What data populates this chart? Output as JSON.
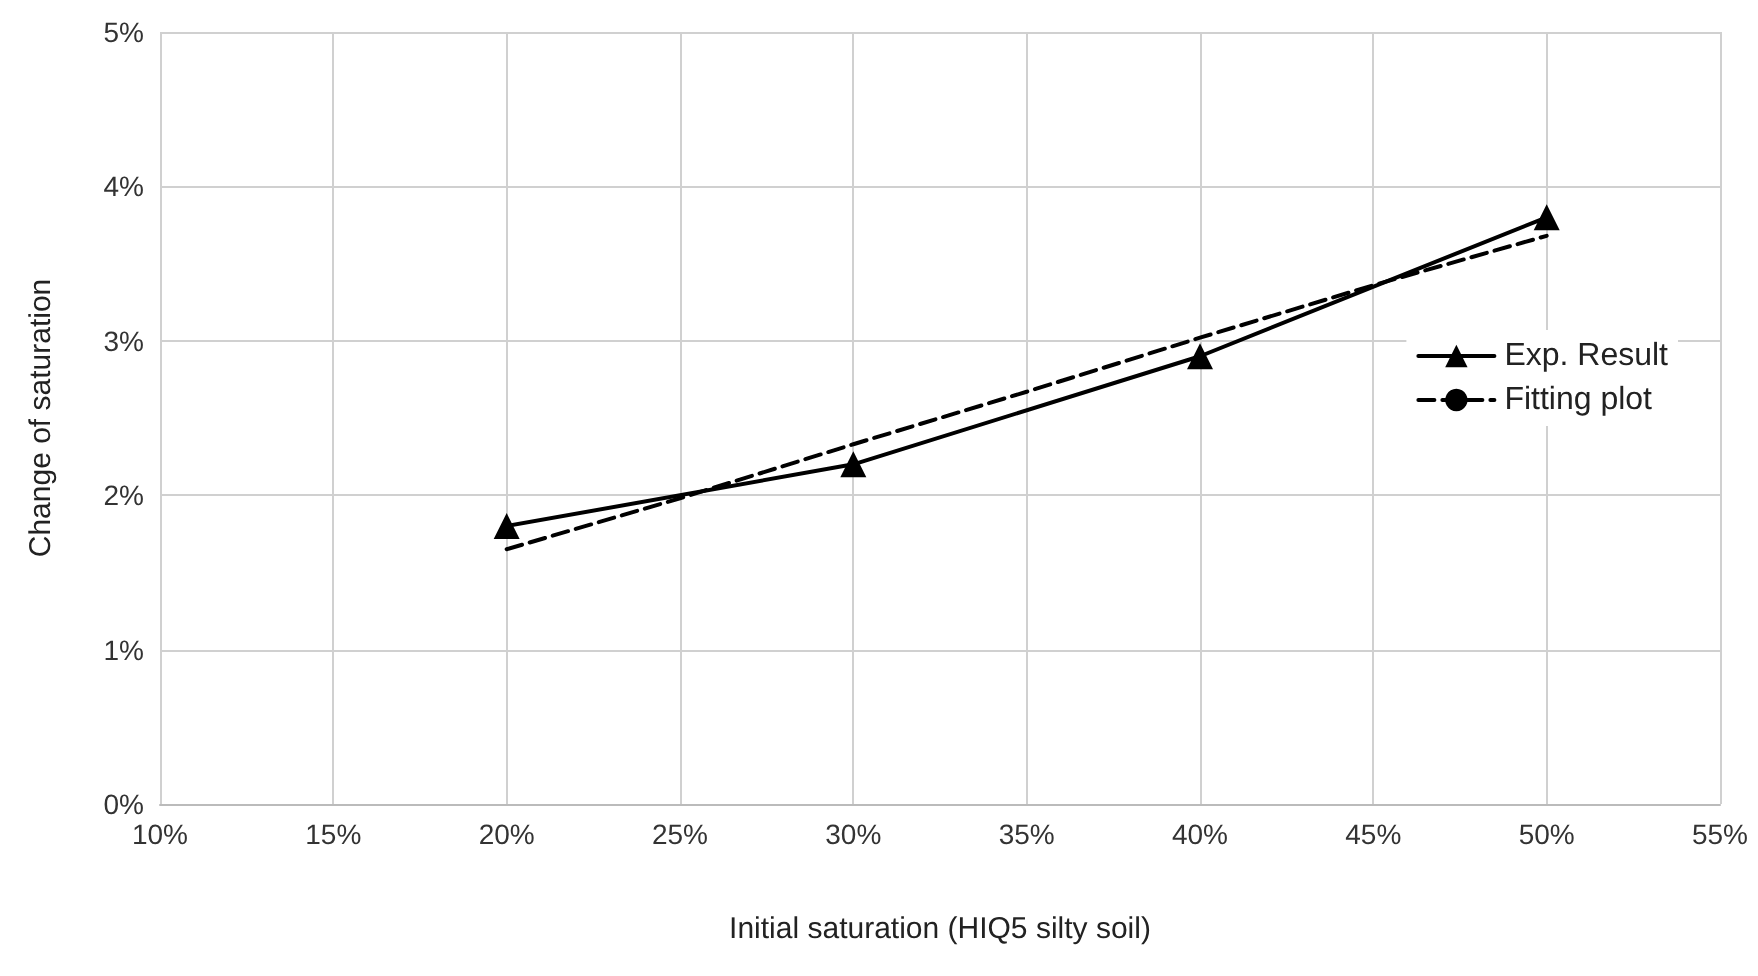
{
  "chart_data": {
    "type": "line",
    "xlabel": "Initial saturation (HIQ5 silty soil)",
    "ylabel": "Change of saturation",
    "series": [
      {
        "name": "Exp. Result",
        "color": "#000000",
        "x": [
          20,
          30,
          40,
          50
        ],
        "values": [
          1.8,
          2.2,
          2.9,
          3.8
        ],
        "marker": "triangle",
        "line_style": "solid"
      },
      {
        "name": "Fitting plot",
        "color": "#000000",
        "x": [
          20,
          25,
          30,
          35,
          40,
          45,
          50
        ],
        "values": [
          1.65,
          1.98,
          2.33,
          2.67,
          3.02,
          3.36,
          3.68
        ],
        "marker": "none",
        "line_style": "dashed"
      }
    ],
    "xlim": [
      10,
      55
    ],
    "xticks": [
      {
        "value": 10,
        "label": "10%"
      },
      {
        "value": 15,
        "label": "15%"
      },
      {
        "value": 20,
        "label": "20%"
      },
      {
        "value": 25,
        "label": "25%"
      },
      {
        "value": 30,
        "label": "30%"
      },
      {
        "value": 35,
        "label": "35%"
      },
      {
        "value": 40,
        "label": "40%"
      },
      {
        "value": 45,
        "label": "45%"
      },
      {
        "value": 50,
        "label": "50%"
      },
      {
        "value": 55,
        "label": "55%"
      }
    ],
    "ylim": [
      0,
      5
    ],
    "yticks": [
      {
        "value": 0,
        "label": "0%"
      },
      {
        "value": 1,
        "label": "1%"
      },
      {
        "value": 2,
        "label": "2%"
      },
      {
        "value": 3,
        "label": "3%"
      },
      {
        "value": 4,
        "label": "4%"
      },
      {
        "value": 5,
        "label": "5%"
      }
    ],
    "grid": true,
    "legend": "right"
  }
}
